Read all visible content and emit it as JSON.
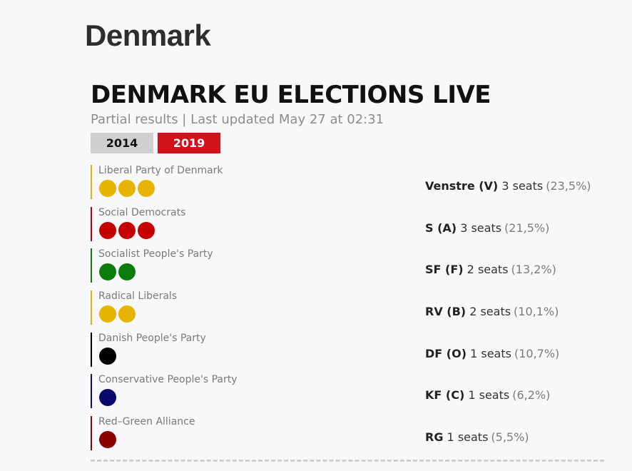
{
  "page": {
    "title": "Denmark"
  },
  "widget": {
    "title": "DENMARK EU ELECTIONS LIVE",
    "subtitle": "Partial results | Last updated May 27 at 02:31",
    "years": [
      {
        "label": "2014",
        "active": false
      },
      {
        "label": "2019",
        "active": true
      }
    ]
  },
  "parties": [
    {
      "name": "Liberal Party of Denmark",
      "abbr": "Venstre (V)",
      "seats_text": "3 seats",
      "pct": "(23,5%)",
      "seats": 3,
      "color": "#e6b400"
    },
    {
      "name": "Social Democrats",
      "abbr": "S (A)",
      "seats_text": "3 seats",
      "pct": "(21,5%)",
      "seats": 3,
      "color": "#c40000"
    },
    {
      "name": "Socialist People's Party",
      "abbr": "SF (F)",
      "seats_text": "2 seats",
      "pct": "(13,2%)",
      "seats": 2,
      "color": "#0b7d0b"
    },
    {
      "name": "Radical Liberals",
      "abbr": "RV (B)",
      "seats_text": "2 seats",
      "pct": "(10,1%)",
      "seats": 2,
      "color": "#e6b400"
    },
    {
      "name": "Danish People's Party",
      "abbr": "DF (O)",
      "seats_text": "1 seats",
      "pct": "(10,7%)",
      "seats": 1,
      "color": "#000000"
    },
    {
      "name": "Conservative People's Party",
      "abbr": "KF (C)",
      "seats_text": "1 seats",
      "pct": "(6,2%)",
      "seats": 1,
      "color": "#0a0a6e"
    },
    {
      "name": "Red–Green Alliance",
      "abbr": "RG",
      "seats_text": "1 seats",
      "pct": "(5,5%)",
      "seats": 1,
      "color": "#8b0000"
    }
  ]
}
